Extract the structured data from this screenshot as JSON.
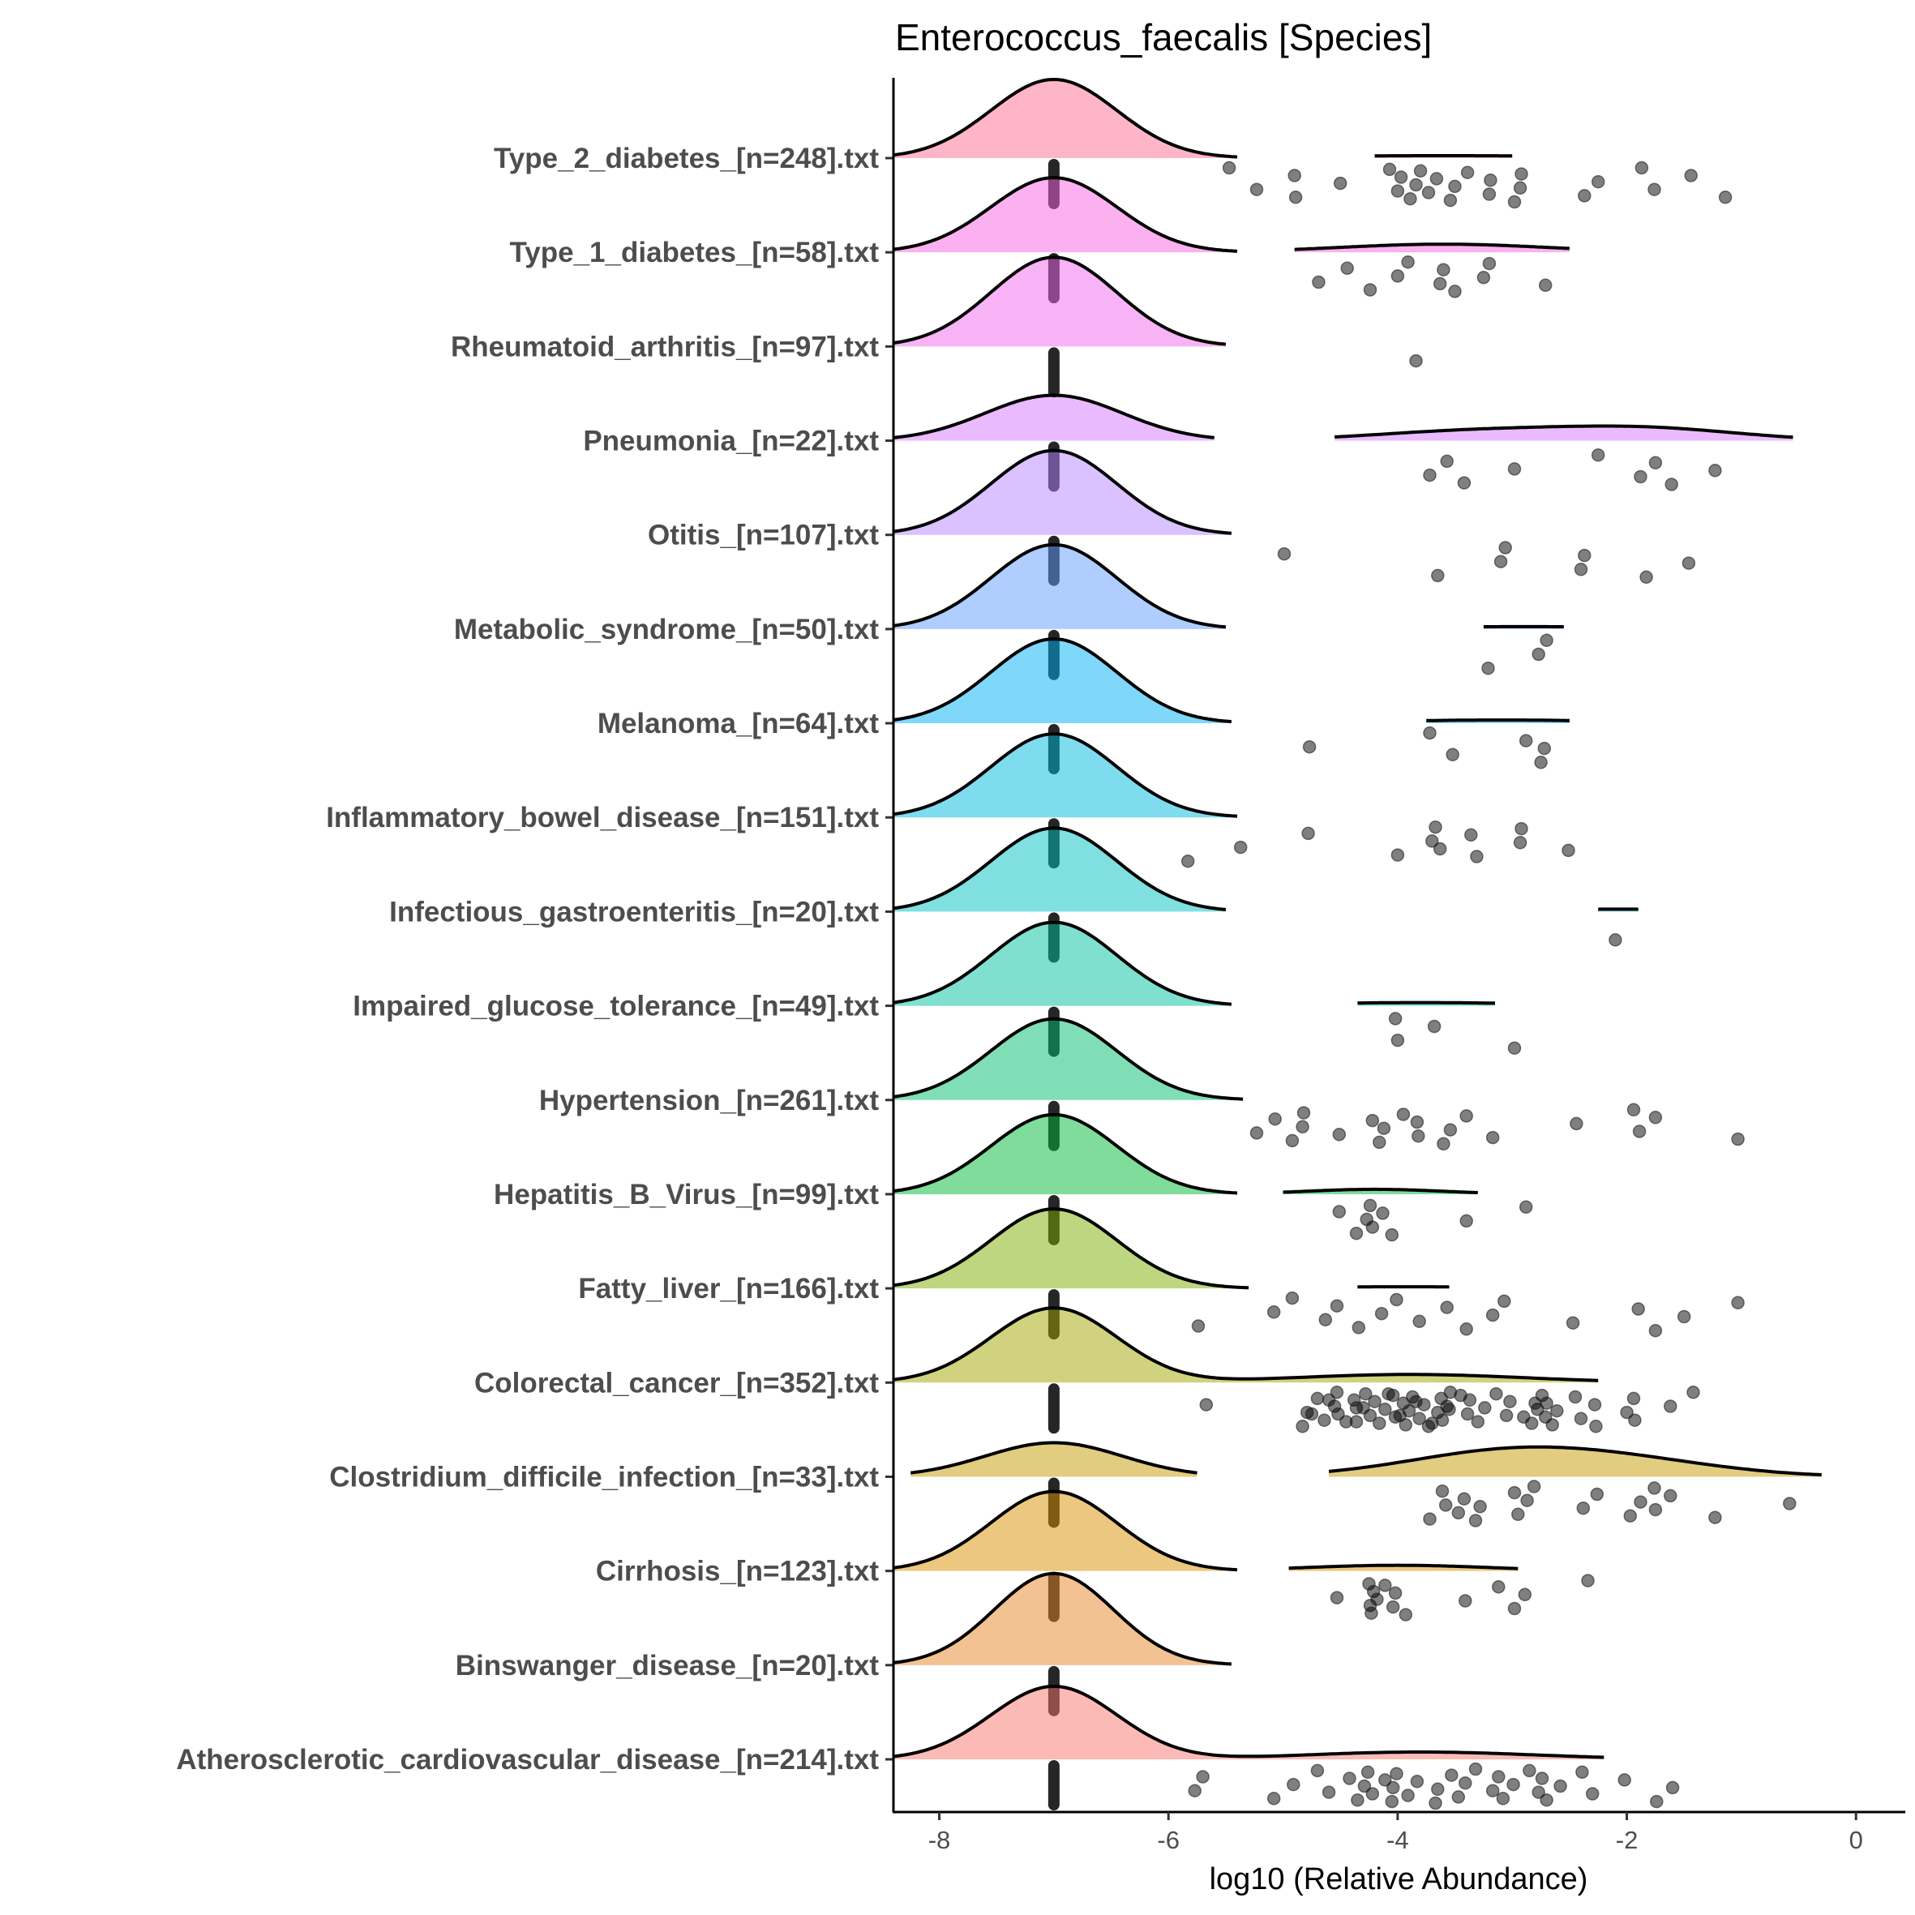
{
  "chart_data": {
    "type": "ridgeline",
    "title": "Enterococcus_faecalis [Species]",
    "xlabel": "log10 (Relative Abundance)",
    "ylabel": "",
    "xlim": [
      -8.4,
      0.43
    ],
    "xticks": [
      -8,
      -6,
      -4,
      -2,
      0
    ],
    "xtick_labels": [
      "-8",
      "-6",
      "-4",
      "-2",
      "0"
    ],
    "grid": false,
    "legend": "none",
    "zero_value": -7,
    "series": [
      {
        "name": "Type_2_diabetes_[n=248].txt",
        "color": "#FF6C91",
        "density": [
          {
            "range": [
              -8.4,
              -5.4
            ],
            "comp": [
              [
                -7,
                0.55,
                0.97
              ]
            ]
          },
          {
            "range": [
              -4.2,
              -3.0
            ],
            "comp": [
              [
                -3.6,
                1.5,
                0.03
              ]
            ]
          }
        ],
        "points": [
          -5.47,
          -5.23,
          -4.9,
          -4.89,
          -4.5,
          -4.07,
          -4.0,
          -3.97,
          -3.89,
          -3.84,
          -3.8,
          -3.73,
          -3.66,
          -3.54,
          -3.5,
          -3.39,
          -3.2,
          -3.19,
          -2.98,
          -2.93,
          -2.92,
          -2.37,
          -2.25,
          -1.87,
          -1.76,
          -1.44,
          -1.14
        ]
      },
      {
        "name": "Type_1_diabetes_[n=58].txt",
        "color": "#F863DF",
        "density": [
          {
            "range": [
              -8.4,
              -5.4
            ],
            "comp": [
              [
                -7,
                0.55,
                0.92
              ]
            ]
          },
          {
            "range": [
              -4.9,
              -2.5
            ],
            "comp": [
              [
                -3.6,
                0.9,
                0.1
              ]
            ]
          }
        ],
        "points": [
          -4.69,
          -4.44,
          -4.24,
          -4.0,
          -3.91,
          -3.63,
          -3.6,
          -3.5,
          -3.25,
          -3.2,
          -2.71
        ]
      },
      {
        "name": "Rheumatoid_arthritis_[n=97].txt",
        "color": "#EF67EB",
        "density": [
          {
            "range": [
              -8.4,
              -5.5
            ],
            "comp": [
              [
                -7,
                0.55,
                1.1
              ]
            ]
          }
        ],
        "points": [
          -3.84
        ]
      },
      {
        "name": "Pneumonia_[n=22].txt",
        "color": "#D575FE",
        "density": [
          {
            "range": [
              -8.4,
              -5.6
            ],
            "comp": [
              [
                -7,
                0.6,
                0.56
              ]
            ]
          },
          {
            "range": [
              -4.55,
              -0.55
            ],
            "comp": [
              [
                -3.3,
                0.9,
                0.12
              ],
              [
                -1.8,
                0.8,
                0.14
              ]
            ]
          }
        ],
        "points": [
          -3.72,
          -3.57,
          -3.42,
          -2.98,
          -2.25,
          -1.88,
          -1.75,
          -1.61,
          -1.23
        ]
      },
      {
        "name": "Otitis_[n=107].txt",
        "color": "#B385FF",
        "density": [
          {
            "range": [
              -8.4,
              -5.45
            ],
            "comp": [
              [
                -7,
                0.55,
                1.04
              ]
            ]
          }
        ],
        "points": [
          -4.99,
          -3.65,
          -3.1,
          -3.06,
          -2.4,
          -2.37,
          -1.83,
          -1.46
        ]
      },
      {
        "name": "Metabolic_syndrome_[n=50].txt",
        "color": "#619CFF",
        "density": [
          {
            "range": [
              -8.4,
              -5.5
            ],
            "comp": [
              [
                -7,
                0.55,
                1.04
              ]
            ]
          },
          {
            "range": [
              -3.25,
              -2.55
            ],
            "comp": [
              [
                -2.9,
                1.0,
                0.03
              ]
            ]
          }
        ],
        "points": [
          -3.21,
          -2.77,
          -2.7
        ]
      },
      {
        "name": "Melanoma_[n=64].txt",
        "color": "#00B0F6",
        "density": [
          {
            "range": [
              -8.4,
              -5.45
            ],
            "comp": [
              [
                -7,
                0.55,
                1.04
              ]
            ]
          },
          {
            "range": [
              -3.75,
              -2.5
            ],
            "comp": [
              [
                -3.1,
                1.0,
                0.04
              ]
            ]
          }
        ],
        "points": [
          -4.77,
          -3.72,
          -3.52,
          -2.88,
          -2.75,
          -2.72
        ]
      },
      {
        "name": "Inflammatory_bowel_disease_[n=151].txt",
        "color": "#00BADE",
        "density": [
          {
            "range": [
              -8.4,
              -5.4
            ],
            "comp": [
              [
                -7,
                0.55,
                1.03
              ]
            ]
          }
        ],
        "points": [
          -5.83,
          -5.37,
          -4.78,
          -4.0,
          -3.7,
          -3.67,
          -3.63,
          -3.36,
          -3.31,
          -2.93,
          -2.92,
          -2.51
        ]
      },
      {
        "name": "Infectious_gastroenteritis_[n=20].txt",
        "color": "#00BFC4",
        "density": [
          {
            "range": [
              -8.4,
              -5.5
            ],
            "comp": [
              [
                -7,
                0.55,
                1.03
              ]
            ]
          },
          {
            "range": [
              -2.25,
              -1.9
            ],
            "comp": [
              [
                -2.07,
                1.0,
                0.03
              ]
            ]
          }
        ],
        "points": [
          -2.1
        ]
      },
      {
        "name": "Impaired_glucose_tolerance_[n=49].txt",
        "color": "#00C19F",
        "density": [
          {
            "range": [
              -8.4,
              -5.45
            ],
            "comp": [
              [
                -7,
                0.55,
                1.03
              ]
            ]
          },
          {
            "range": [
              -4.35,
              -3.15
            ],
            "comp": [
              [
                -3.8,
                1.0,
                0.04
              ]
            ]
          }
        ],
        "points": [
          -4.02,
          -4.0,
          -3.68,
          -2.98
        ]
      },
      {
        "name": "Hypertension_[n=261].txt",
        "color": "#00BE6C",
        "density": [
          {
            "range": [
              -8.4,
              -5.35
            ],
            "comp": [
              [
                -7,
                0.55,
                1.0
              ]
            ]
          }
        ],
        "points": [
          -5.23,
          -5.07,
          -4.92,
          -4.83,
          -4.82,
          -4.51,
          -4.22,
          -4.16,
          -4.12,
          -3.95,
          -3.82,
          -3.83,
          -3.6,
          -3.54,
          -3.4,
          -3.17,
          -2.44,
          -1.94,
          -1.89,
          -1.75,
          -1.03
        ]
      },
      {
        "name": "Hepatitis_B_Virus_[n=99].txt",
        "color": "#00BA38",
        "density": [
          {
            "range": [
              -8.4,
              -5.4
            ],
            "comp": [
              [
                -7,
                0.55,
                0.98
              ]
            ]
          },
          {
            "range": [
              -5.0,
              -3.3
            ],
            "comp": [
              [
                -4.2,
                0.6,
                0.06
              ]
            ]
          }
        ],
        "points": [
          -4.51,
          -4.36,
          -4.27,
          -4.24,
          -4.22,
          -4.13,
          -4.05,
          -3.4,
          -2.88
        ]
      },
      {
        "name": "Fatty_liver_[n=166].txt",
        "color": "#7CAE00",
        "density": [
          {
            "range": [
              -8.4,
              -5.3
            ],
            "comp": [
              [
                -7,
                0.55,
                0.98
              ]
            ]
          },
          {
            "range": [
              -4.35,
              -3.55
            ],
            "comp": [
              [
                -3.95,
                1.5,
                0.02
              ]
            ]
          }
        ],
        "points": [
          -5.74,
          -5.08,
          -4.92,
          -4.63,
          -4.53,
          -4.34,
          -4.14,
          -4.01,
          -3.81,
          -3.57,
          -3.4,
          -3.17,
          -3.07,
          -2.47,
          -1.9,
          -1.75,
          -1.5,
          -1.03
        ]
      },
      {
        "name": "Colorectal_cancer_[n=352].txt",
        "color": "#A3A500",
        "density": [
          {
            "range": [
              -8.4,
              -2.25
            ],
            "comp": [
              [
                -7,
                0.55,
                0.92
              ],
              [
                -3.9,
                1.0,
                0.1
              ]
            ]
          }
        ],
        "points": [
          -5.67,
          -4.83,
          -4.79,
          -4.7,
          -4.64,
          -4.55,
          -4.53,
          -4.52,
          -4.38,
          -4.36,
          -4.36,
          -4.28,
          -4.24,
          -4.2,
          -4.16,
          -4.11,
          -4.04,
          -4.02,
          -3.95,
          -3.93,
          -3.9,
          -3.87,
          -3.81,
          -3.77,
          -3.73,
          -3.65,
          -3.62,
          -3.61,
          -3.57,
          -3.54,
          -3.39,
          -3.37,
          -3.3,
          -3.24,
          -3.14,
          -3.05,
          -3.02,
          -2.83,
          -2.78,
          -2.74,
          -2.71,
          -2.7,
          -2.65,
          -2.61,
          -2.45,
          -2.4,
          -2.28,
          -2.27,
          -2.0,
          -1.94,
          -1.93,
          -1.62,
          -1.42,
          -4.75,
          -4.6,
          -4.45,
          -4.3,
          -4.08,
          -3.98,
          -3.84,
          -3.7,
          -3.55,
          -3.45,
          -2.9,
          -2.8
        ]
      },
      {
        "name": "Clostridium_difficile_infection_[n=33].txt",
        "color": "#C49A00",
        "density": [
          {
            "range": [
              -8.25,
              -5.75
            ],
            "comp": [
              [
                -7,
                0.6,
                0.42
              ]
            ]
          },
          {
            "range": [
              -4.6,
              -0.3
            ],
            "comp": [
              [
                -3.0,
                0.9,
                0.32
              ],
              [
                -1.8,
                0.8,
                0.12
              ]
            ]
          }
        ],
        "points": [
          -3.72,
          -3.58,
          -3.61,
          -3.47,
          -3.42,
          -3.32,
          -3.28,
          -2.98,
          -2.95,
          -2.87,
          -2.81,
          -2.38,
          -2.26,
          -1.97,
          -1.88,
          -1.76,
          -1.75,
          -1.62,
          -1.23,
          -0.58
        ]
      },
      {
        "name": "Cirrhosis_[n=123].txt",
        "color": "#D89000",
        "density": [
          {
            "range": [
              -8.4,
              -5.4
            ],
            "comp": [
              [
                -7,
                0.55,
                0.98
              ]
            ]
          },
          {
            "range": [
              -4.95,
              -2.95
            ],
            "comp": [
              [
                -4.0,
                0.8,
                0.07
              ]
            ]
          }
        ],
        "points": [
          -4.53,
          -4.25,
          -4.24,
          -4.21,
          -4.23,
          -4.18,
          -4.11,
          -4.04,
          -4.02,
          -3.93,
          -3.41,
          -3.12,
          -2.98,
          -2.89,
          -2.34
        ]
      },
      {
        "name": "Binswanger_disease_[n=20].txt",
        "color": "#E88526",
        "density": [
          {
            "range": [
              -8.4,
              -5.45
            ],
            "comp": [
              [
                -7,
                0.52,
                1.13
              ]
            ]
          }
        ],
        "points": []
      },
      {
        "name": "Atherosclerotic_cardiovascular_disease_[n=214].txt",
        "color": "#F8766D",
        "density": [
          {
            "range": [
              -8.4,
              -2.2
            ],
            "comp": [
              [
                -7,
                0.55,
                0.9
              ],
              [
                -3.8,
                1.0,
                0.09
              ]
            ]
          }
        ],
        "points": [
          -5.77,
          -5.7,
          -5.08,
          -4.91,
          -4.7,
          -4.6,
          -4.42,
          -4.35,
          -4.29,
          -4.26,
          -4.22,
          -4.11,
          -4.05,
          -4.04,
          -4.01,
          -3.91,
          -3.83,
          -3.67,
          -3.65,
          -3.53,
          -3.47,
          -3.41,
          -3.32,
          -3.17,
          -3.12,
          -3.08,
          -2.99,
          -2.85,
          -2.77,
          -2.74,
          -2.7,
          -2.58,
          -2.39,
          -2.3,
          -2.02,
          -1.74,
          -1.6
        ]
      }
    ]
  }
}
